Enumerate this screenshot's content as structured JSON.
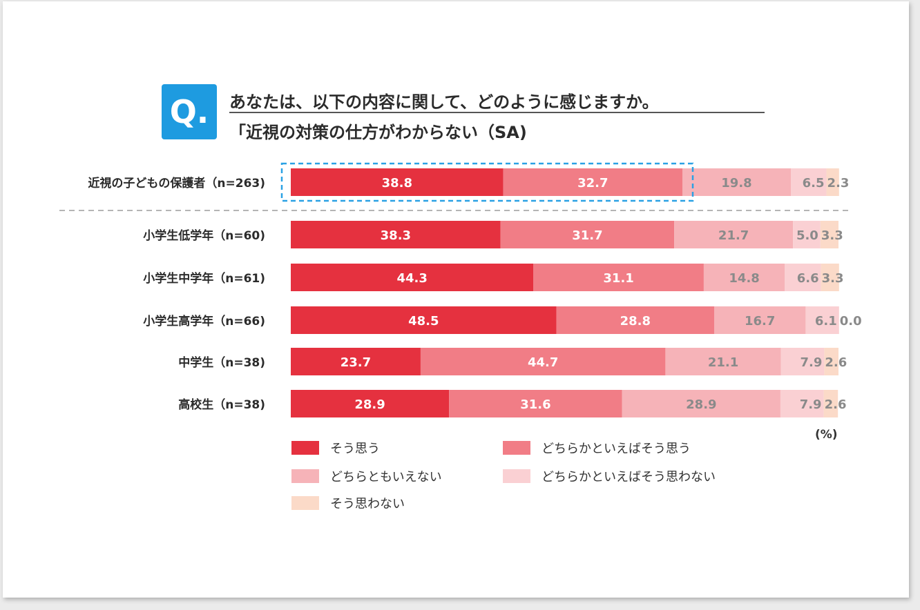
{
  "question": {
    "badge": "Q.",
    "line1": "あなたは、以下の内容に関して、どのように感じますか。",
    "line2": "「近視の対策の仕方がわからない（SA)"
  },
  "colors": {
    "badge": "#1e9be0",
    "highlight_border": "#2aa1e4",
    "series": [
      "#e5313f",
      "#f17d86",
      "#f6b3b8",
      "#fad0d3",
      "#fbdac8"
    ]
  },
  "chart_data": {
    "type": "bar",
    "orientation": "horizontal",
    "stacked": true,
    "unit": "(%)",
    "categories": [
      "近視の子どもの保護者（n=263)",
      "小学生低学年（n=60)",
      "小学生中学年（n=61)",
      "小学生高学年（n=66)",
      "中学生（n=38)",
      "高校生（n=38)"
    ],
    "series": [
      {
        "name": "そう思う",
        "values": [
          38.8,
          38.3,
          44.3,
          48.5,
          23.7,
          28.9
        ]
      },
      {
        "name": "どちらかといえばそう思う",
        "values": [
          32.7,
          31.7,
          31.1,
          28.8,
          44.7,
          31.6
        ]
      },
      {
        "name": "どちらともいえない",
        "values": [
          19.8,
          21.7,
          14.8,
          16.7,
          21.1,
          28.9
        ]
      },
      {
        "name": "どちらかといえばそう思わない",
        "values": [
          6.5,
          5.0,
          6.6,
          6.1,
          7.9,
          7.9
        ]
      },
      {
        "name": "そう思わない",
        "values": [
          2.3,
          3.3,
          3.3,
          0.0,
          2.6,
          2.6
        ]
      }
    ],
    "highlight": {
      "category": 0,
      "series": [
        0,
        1
      ]
    }
  }
}
